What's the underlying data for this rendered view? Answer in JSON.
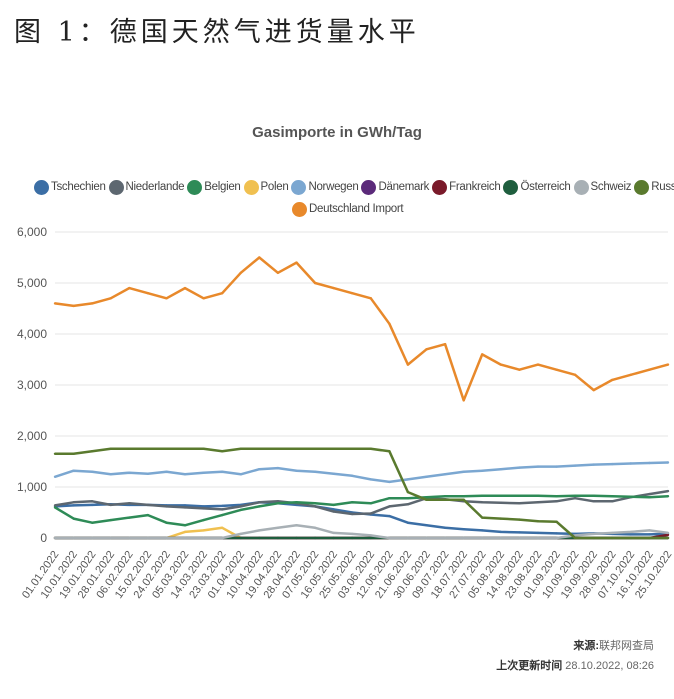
{
  "figure_caption": "图 1：德国天然气进货量水平",
  "source_label": "来源:",
  "source_value": "联邦网查局",
  "updated_label": "上次更新时间",
  "updated_value": "28.10.2022, 08:26",
  "chart_data": {
    "type": "line",
    "title": "Gasimporte in GWh/Tag",
    "xlabel": "",
    "ylabel": "",
    "ylim": [
      0,
      6000
    ],
    "yticks": [
      "0",
      "1,000",
      "2,000",
      "3,000",
      "4,000",
      "5,000",
      "6,000"
    ],
    "x_tick_labels": [
      "01.01.2022",
      "10.01.2022",
      "19.01.2022",
      "28.01.2022",
      "06.02.2022",
      "15.02.2022",
      "24.02.2022",
      "05.03.2022",
      "14.03.2022",
      "23.03.2022",
      "01.04.2022",
      "10.04.2022",
      "19.04.2022",
      "28.04.2022",
      "07.05.2022",
      "16.05.2022",
      "25.05.2022",
      "03.06.2022",
      "12.06.2022",
      "21.06.2022",
      "30.06.2022",
      "09.07.2022",
      "18.07.2022",
      "27.07.2022",
      "05.08.2022",
      "14.08.2022",
      "23.08.2022",
      "01.09.2022",
      "10.09.2022",
      "19.09.2022",
      "28.09.2022",
      "07.10.2022",
      "16.10.2022",
      "25.10.2022"
    ],
    "grid": "horizontal",
    "legend_position": "top",
    "series": [
      {
        "name": "Tschechien",
        "color": "#3b6ea5",
        "values": [
          620,
          640,
          650,
          660,
          650,
          650,
          640,
          640,
          620,
          630,
          650,
          700,
          680,
          650,
          620,
          560,
          500,
          460,
          430,
          300,
          250,
          200,
          170,
          150,
          120,
          110,
          100,
          90,
          80,
          90,
          80,
          70,
          70,
          80
        ]
      },
      {
        "name": "Niederlande",
        "color": "#5d6770",
        "values": [
          640,
          700,
          720,
          650,
          680,
          650,
          620,
          600,
          580,
          560,
          620,
          700,
          720,
          680,
          620,
          520,
          470,
          480,
          620,
          660,
          780,
          760,
          720,
          700,
          690,
          680,
          700,
          720,
          780,
          720,
          720,
          800,
          860,
          920
        ]
      },
      {
        "name": "Belgien",
        "color": "#2e8b57",
        "values": [
          600,
          380,
          300,
          350,
          400,
          450,
          300,
          250,
          350,
          450,
          550,
          620,
          680,
          700,
          680,
          650,
          700,
          680,
          780,
          780,
          800,
          820,
          820,
          830,
          830,
          830,
          830,
          820,
          830,
          830,
          820,
          810,
          800,
          820
        ]
      },
      {
        "name": "Polen",
        "color": "#f0c050",
        "values": [
          0,
          0,
          0,
          0,
          0,
          0,
          0,
          120,
          150,
          200,
          0,
          0,
          0,
          0,
          0,
          0,
          0,
          0,
          0,
          0,
          0,
          0,
          0,
          0,
          0,
          0,
          0,
          0,
          0,
          0,
          0,
          0,
          0,
          0
        ]
      },
      {
        "name": "Norwegen",
        "color": "#7ba7d1",
        "values": [
          1200,
          1320,
          1300,
          1250,
          1280,
          1260,
          1300,
          1250,
          1280,
          1300,
          1250,
          1350,
          1370,
          1320,
          1300,
          1260,
          1220,
          1150,
          1100,
          1150,
          1200,
          1250,
          1300,
          1320,
          1350,
          1380,
          1400,
          1400,
          1420,
          1440,
          1450,
          1460,
          1470,
          1480
        ]
      },
      {
        "name": "Dänemark",
        "color": "#5b2a7a",
        "values": [
          0,
          0,
          0,
          0,
          0,
          0,
          0,
          0,
          0,
          0,
          0,
          0,
          0,
          0,
          0,
          0,
          0,
          0,
          0,
          0,
          0,
          0,
          0,
          0,
          0,
          0,
          0,
          0,
          0,
          0,
          0,
          0,
          0,
          0
        ]
      },
      {
        "name": "Frankreich",
        "color": "#7a1a2a",
        "values": [
          0,
          0,
          0,
          0,
          0,
          0,
          0,
          0,
          0,
          0,
          0,
          0,
          0,
          0,
          0,
          0,
          0,
          0,
          0,
          0,
          0,
          0,
          0,
          0,
          0,
          0,
          0,
          0,
          0,
          0,
          0,
          0,
          0,
          60
        ]
      },
      {
        "name": "Österreich",
        "color": "#1f5e3e",
        "values": [
          0,
          0,
          0,
          0,
          0,
          0,
          0,
          0,
          0,
          0,
          0,
          0,
          0,
          0,
          0,
          0,
          0,
          0,
          0,
          0,
          0,
          0,
          0,
          0,
          0,
          0,
          0,
          0,
          0,
          0,
          0,
          0,
          0,
          0
        ]
      },
      {
        "name": "Schweiz",
        "color": "#a8b0b5",
        "values": [
          0,
          0,
          0,
          0,
          0,
          0,
          0,
          0,
          0,
          0,
          80,
          150,
          200,
          250,
          200,
          100,
          80,
          50,
          0,
          0,
          0,
          0,
          0,
          0,
          0,
          0,
          0,
          0,
          50,
          80,
          100,
          120,
          150,
          100
        ]
      },
      {
        "name": "Russland",
        "color": "#5a7a2e",
        "values": [
          1650,
          1650,
          1700,
          1750,
          1750,
          1750,
          1750,
          1750,
          1750,
          1700,
          1750,
          1750,
          1750,
          1750,
          1750,
          1750,
          1750,
          1750,
          1700,
          900,
          750,
          750,
          750,
          400,
          380,
          360,
          330,
          320,
          0,
          0,
          0,
          0,
          0,
          0
        ]
      },
      {
        "name": "Deutschland Import",
        "color": "#e8892b",
        "values": [
          4600,
          4550,
          4600,
          4700,
          4900,
          4800,
          4700,
          4900,
          4700,
          4800,
          5200,
          5500,
          5200,
          5400,
          5000,
          4900,
          4800,
          4700,
          4200,
          3400,
          3700,
          3800,
          2700,
          3600,
          3400,
          3300,
          3400,
          3300,
          3200,
          2900,
          3100,
          3200,
          3300,
          3400
        ]
      }
    ]
  }
}
